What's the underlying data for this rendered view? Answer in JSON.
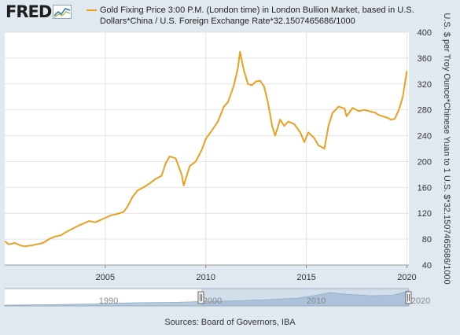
{
  "logo": {
    "text": "FRED",
    "icon": "fred-graph-icon"
  },
  "legend": {
    "label": "Gold Fixing Price 3:00 P.M. (London time) in London Bullion Market, based in U.S. Dollars*China / U.S. Foreign Exchange Rate*32.1507465686/1000",
    "color": "#e9a023"
  },
  "source": "Sources: Board of Governors, IBA",
  "chart_data": {
    "type": "line",
    "title": "",
    "ylabel": "U.S. $ per Troy Ounce*Chinese Yuan to 1 U.S. $*32.1507465686/1000",
    "xlabel": "",
    "ylim": [
      40,
      400
    ],
    "xlim": [
      2000.0,
      2020.1
    ],
    "x_ticks": [
      "2005",
      "2010",
      "2015",
      "2020"
    ],
    "y_ticks": [
      "40",
      "80",
      "120",
      "160",
      "200",
      "240",
      "280",
      "320",
      "360",
      "400"
    ],
    "grid": true,
    "line_color": "#e9a023",
    "series": [
      {
        "x": [
          2000.0,
          2000.2,
          2000.5,
          2000.8,
          2001.0,
          2001.3,
          2001.6,
          2001.9,
          2002.2,
          2002.5,
          2002.8,
          2003.0,
          2003.3,
          2003.6,
          2003.9,
          2004.2,
          2004.5,
          2004.8,
          2005.0,
          2005.3,
          2005.6,
          2005.9,
          2006.1,
          2006.35,
          2006.6,
          2006.9,
          2007.2,
          2007.5,
          2007.8,
          2008.0,
          2008.2,
          2008.5,
          2008.8,
          2008.9,
          2009.2,
          2009.5,
          2009.8,
          2010.0,
          2010.3,
          2010.6,
          2010.9,
          2011.1,
          2011.4,
          2011.6,
          2011.7,
          2011.9,
          2012.1,
          2012.3,
          2012.5,
          2012.7,
          2012.9,
          2013.1,
          2013.3,
          2013.45,
          2013.7,
          2013.9,
          2014.1,
          2014.4,
          2014.7,
          2014.9,
          2015.1,
          2015.4,
          2015.6,
          2015.9,
          2016.1,
          2016.3,
          2016.6,
          2016.9,
          2017.0,
          2017.3,
          2017.6,
          2017.9,
          2018.1,
          2018.4,
          2018.6,
          2018.8,
          2019.0,
          2019.2,
          2019.4,
          2019.6,
          2019.8,
          2020.0
        ],
        "y": [
          77,
          72,
          74,
          70,
          69,
          70,
          72,
          74,
          80,
          84,
          86,
          90,
          95,
          100,
          104,
          108,
          106,
          110,
          113,
          117,
          119,
          122,
          130,
          145,
          155,
          160,
          166,
          173,
          178,
          197,
          208,
          205,
          180,
          163,
          193,
          200,
          218,
          235,
          248,
          262,
          285,
          292,
          318,
          345,
          370,
          340,
          320,
          318,
          324,
          325,
          316,
          290,
          255,
          240,
          265,
          255,
          262,
          258,
          245,
          230,
          245,
          236,
          225,
          220,
          255,
          275,
          285,
          282,
          270,
          283,
          278,
          280,
          278,
          276,
          272,
          270,
          268,
          265,
          266,
          280,
          300,
          340
        ]
      }
    ]
  }
}
